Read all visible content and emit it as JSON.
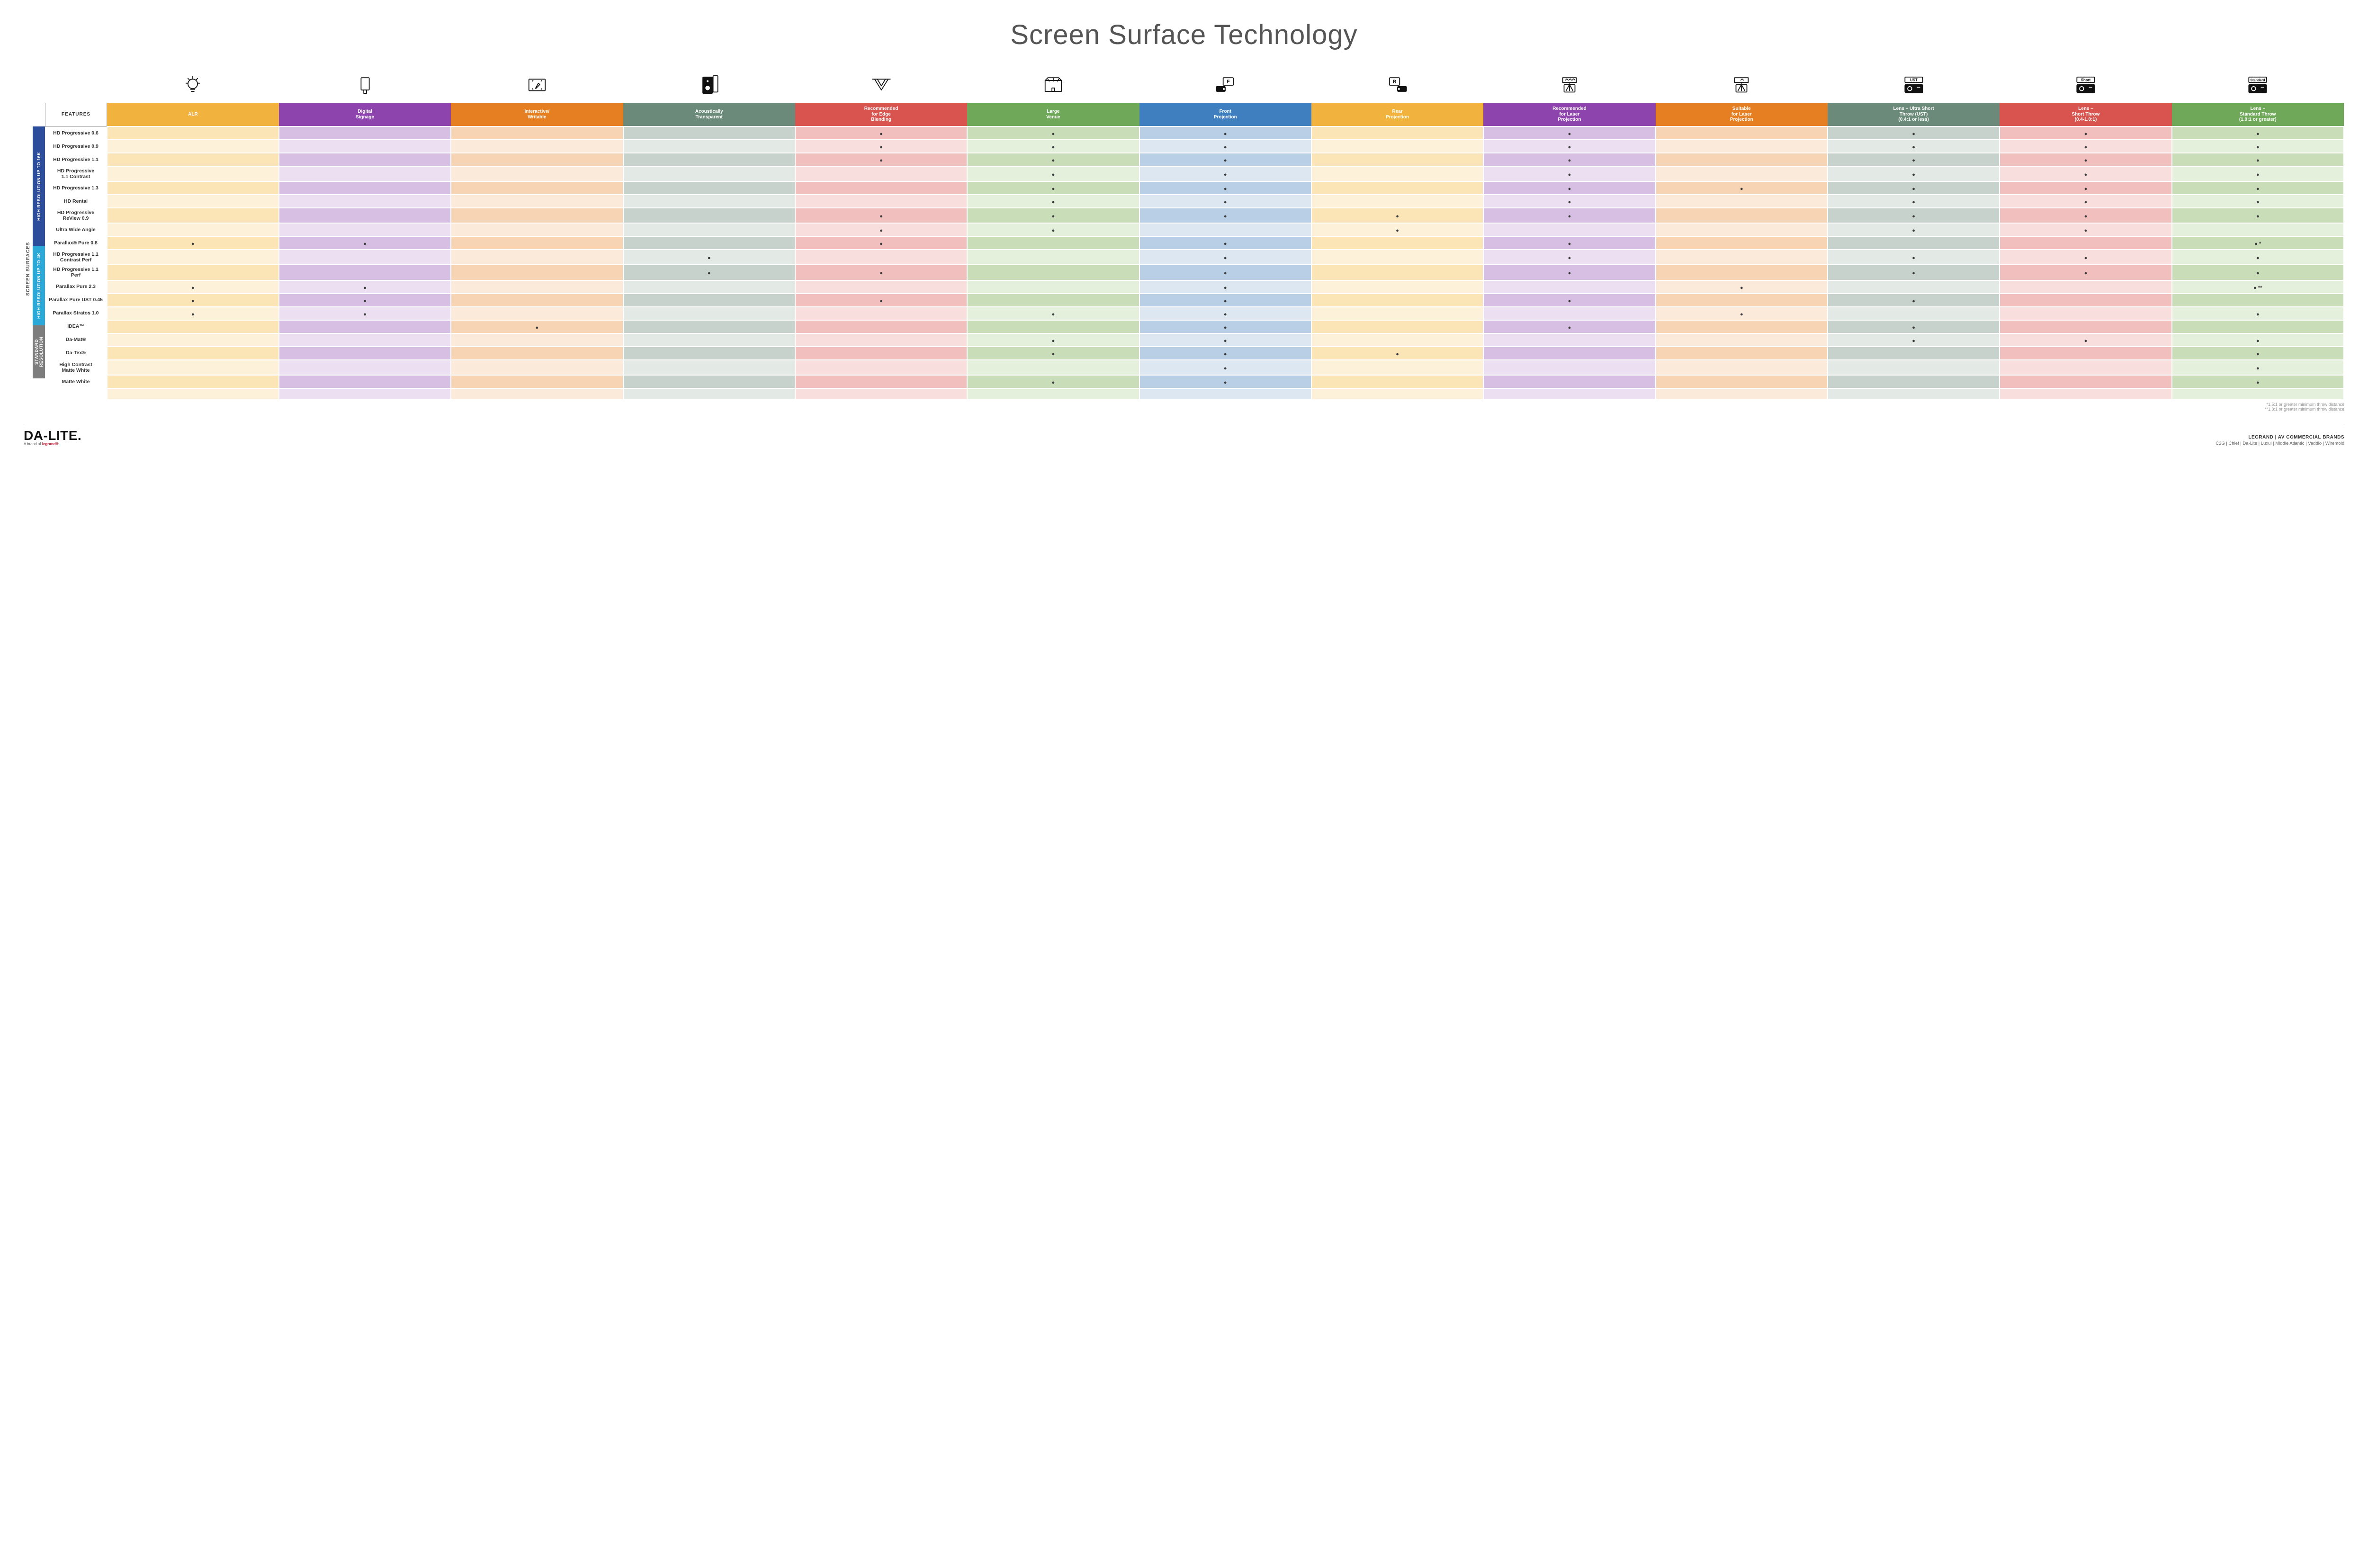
{
  "title": "Screen Surface Technology",
  "sideLabel": "SCREEN SURFACES",
  "groups": [
    {
      "label": "HIGH RESOLUTION UP TO 16K",
      "color": "#2b4d9b",
      "rows": 9
    },
    {
      "label": "HIGH RESOLUTION UP TO 4K",
      "color": "#2aa8d8",
      "rows": 6
    },
    {
      "label": "STANDARD RESOLUTION",
      "color": "#7d7d7d",
      "rows": 4
    }
  ],
  "featuresHeader": "FEATURES",
  "columns": [
    {
      "key": "alr",
      "label": "ALR",
      "color": "#f2b23e",
      "light": "#fbe4b6",
      "lighter": "#fdf1da",
      "icon": "bulb"
    },
    {
      "key": "sign",
      "label": "Digital\nSignage",
      "color": "#8e44ad",
      "light": "#d7bfe3",
      "lighter": "#ecdff1",
      "icon": "signage"
    },
    {
      "key": "write",
      "label": "Interactive/\nWritable",
      "color": "#e67e22",
      "light": "#f7d4b3",
      "lighter": "#fbead9",
      "icon": "write"
    },
    {
      "key": "acou",
      "label": "Acoustically\nTransparent",
      "color": "#6b8a7a",
      "light": "#c6d2cb",
      "lighter": "#e3e9e5",
      "icon": "speaker"
    },
    {
      "key": "edge",
      "label": "Recommended\nfor Edge\nBlending",
      "color": "#d9534f",
      "light": "#f1bfbd",
      "lighter": "#f8dfde",
      "icon": "edge"
    },
    {
      "key": "venue",
      "label": "Large\nVenue",
      "color": "#6fa859",
      "light": "#c9deb8",
      "lighter": "#e4efdc",
      "icon": "venue"
    },
    {
      "key": "front",
      "label": "Front\nProjection",
      "color": "#3f7fbf",
      "light": "#b9cfe6",
      "lighter": "#dce7f2",
      "icon": "front"
    },
    {
      "key": "rear",
      "label": "Rear\nProjection",
      "color": "#f2b23e",
      "light": "#fbe4b6",
      "lighter": "#fdf1da",
      "icon": "rear"
    },
    {
      "key": "rlaser",
      "label": "Recommended\nfor Laser\nProjection",
      "color": "#8e44ad",
      "light": "#d7bfe3",
      "lighter": "#ecdff1",
      "icon": "laser3"
    },
    {
      "key": "slaser",
      "label": "Suitable\nfor Laser\nProjection",
      "color": "#e67e22",
      "light": "#f7d4b3",
      "lighter": "#fbead9",
      "icon": "laser1"
    },
    {
      "key": "ust",
      "label": "Lens – Ultra Short\nThrow (UST)\n(0.4:1 or less)",
      "color": "#6b8a7a",
      "light": "#c6d2cb",
      "lighter": "#e3e9e5",
      "icon": "ust"
    },
    {
      "key": "short",
      "label": "Lens –\nShort Throw\n(0.4-1.0:1)",
      "color": "#d9534f",
      "light": "#f1bfbd",
      "lighter": "#f8dfde",
      "icon": "short"
    },
    {
      "key": "std",
      "label": "Lens –\nStandard Throw\n(1.0:1 or greater)",
      "color": "#6fa859",
      "light": "#c9deb8",
      "lighter": "#e4efdc",
      "icon": "standard"
    }
  ],
  "rows": [
    {
      "label": "HD Progressive 0.6",
      "dots": {
        "edge": "•",
        "venue": "•",
        "front": "•",
        "rlaser": "•",
        "ust": "•",
        "short": "•",
        "std": "•"
      }
    },
    {
      "label": "HD Progressive 0.9",
      "dots": {
        "edge": "•",
        "venue": "•",
        "front": "•",
        "rlaser": "•",
        "ust": "•",
        "short": "•",
        "std": "•"
      }
    },
    {
      "label": "HD Progressive 1.1",
      "dots": {
        "edge": "•",
        "venue": "•",
        "front": "•",
        "rlaser": "•",
        "ust": "•",
        "short": "•",
        "std": "•"
      }
    },
    {
      "label": "HD Progressive\n1.1 Contrast",
      "dots": {
        "venue": "•",
        "front": "•",
        "rlaser": "•",
        "ust": "•",
        "short": "•",
        "std": "•"
      }
    },
    {
      "label": "HD Progressive 1.3",
      "dots": {
        "venue": "•",
        "front": "•",
        "rlaser": "•",
        "slaser": "•",
        "ust": "•",
        "short": "•",
        "std": "•"
      }
    },
    {
      "label": "HD Rental",
      "dots": {
        "venue": "•",
        "front": "•",
        "rlaser": "•",
        "ust": "•",
        "short": "•",
        "std": "•"
      }
    },
    {
      "label": "HD Progressive ReView 0.9",
      "dots": {
        "edge": "•",
        "venue": "•",
        "front": "•",
        "rear": "•",
        "rlaser": "•",
        "ust": "•",
        "short": "•",
        "std": "•"
      }
    },
    {
      "label": "Ultra Wide Angle",
      "dots": {
        "edge": "•",
        "venue": "•",
        "rear": "•",
        "ust": "•",
        "short": "•"
      }
    },
    {
      "label": "Parallax® Pure 0.8",
      "dots": {
        "alr": "•",
        "sign": "•",
        "edge": "•",
        "front": "•",
        "rlaser": "•",
        "std": "•*"
      }
    },
    {
      "label": "HD Progressive 1.1\nContrast Perf",
      "dots": {
        "acou": "•",
        "front": "•",
        "rlaser": "•",
        "ust": "•",
        "short": "•",
        "std": "•"
      }
    },
    {
      "label": "HD Progressive 1.1 Perf",
      "dots": {
        "acou": "•",
        "edge": "•",
        "front": "•",
        "rlaser": "•",
        "ust": "•",
        "short": "•",
        "std": "•"
      }
    },
    {
      "label": "Parallax Pure 2.3",
      "dots": {
        "alr": "•",
        "sign": "•",
        "front": "•",
        "slaser": "•",
        "std": "•**"
      }
    },
    {
      "label": "Parallax Pure UST 0.45",
      "dots": {
        "alr": "•",
        "sign": "•",
        "edge": "•",
        "front": "•",
        "rlaser": "•",
        "ust": "•"
      }
    },
    {
      "label": "Parallax Stratos 1.0",
      "dots": {
        "alr": "•",
        "sign": "•",
        "venue": "•",
        "front": "•",
        "slaser": "•",
        "std": "•"
      }
    },
    {
      "label": "IDEA™",
      "dots": {
        "write": "•",
        "front": "•",
        "rlaser": "•",
        "ust": "•"
      }
    },
    {
      "label": "Da-Mat®",
      "dots": {
        "venue": "•",
        "front": "•",
        "ust": "•",
        "short": "•",
        "std": "•"
      }
    },
    {
      "label": "Da-Tex®",
      "dots": {
        "venue": "•",
        "front": "•",
        "rear": "•",
        "std": "•"
      }
    },
    {
      "label": "High Contrast\nMatte White",
      "dots": {
        "front": "•",
        "std": "•"
      }
    },
    {
      "label": "Matte White",
      "dots": {
        "venue": "•",
        "front": "•",
        "std": "•"
      }
    }
  ],
  "footnotes": [
    "*1.5:1 or greater minimum throw distance",
    "**1.8:1 or greater minimum throw distance"
  ],
  "footer": {
    "logo": "DA‑LITE.",
    "logoSub": "A brand of",
    "logoSubBrand": "legrand®",
    "rightTitle": "LEGRAND | AV COMMERCIAL BRANDS",
    "brands": "C2G  |  Chief  |  Da-Lite  |  Luxul  |  Middle Atlantic  |  Vaddio  |  Wiremold"
  },
  "iconStroke": "#111111"
}
